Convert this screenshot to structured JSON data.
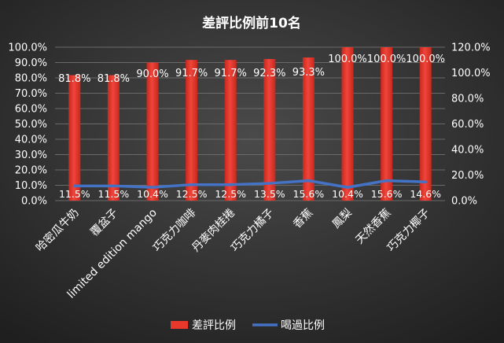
{
  "chart_data": {
    "type": "bar",
    "title": "差評比例前10名",
    "categories": [
      "哈密瓜牛奶",
      "覆盆子",
      "limited edition mango",
      "巧克力咖啡",
      "丹麥肉桂捲",
      "巧克力橘子",
      "香蕉",
      "鳳梨",
      "天然香蕉",
      "巧克力椰子"
    ],
    "series": [
      {
        "name": "差評比例",
        "type": "bar",
        "axis": "left",
        "color": "#e8382c",
        "values": [
          81.8,
          81.8,
          90.0,
          91.7,
          91.7,
          92.3,
          93.3,
          100.0,
          100.0,
          100.0
        ],
        "labels": [
          "81.8%",
          "81.8%",
          "90.0%",
          "91.7%",
          "91.7%",
          "92.3%",
          "93.3%",
          "100.0%",
          "100.0%",
          "100.0%"
        ]
      },
      {
        "name": "喝過比例",
        "type": "line",
        "axis": "right",
        "color": "#4472c4",
        "values": [
          11.5,
          11.5,
          10.4,
          12.5,
          12.5,
          13.5,
          15.6,
          10.4,
          15.6,
          14.6
        ],
        "labels": [
          "11.5%",
          "11.5%",
          "10.4%",
          "12.5%",
          "12.5%",
          "13.5%",
          "15.6%",
          "10.4%",
          "15.6%",
          "14.6%"
        ]
      }
    ],
    "y_left": {
      "ylim": [
        0,
        100
      ],
      "ticks": [
        0,
        10,
        20,
        30,
        40,
        50,
        60,
        70,
        80,
        90,
        100
      ],
      "tick_labels": [
        "0.0%",
        "10.0%",
        "20.0%",
        "30.0%",
        "40.0%",
        "50.0%",
        "60.0%",
        "70.0%",
        "80.0%",
        "90.0%",
        "100.0%"
      ]
    },
    "y_right": {
      "ylim": [
        0,
        120
      ],
      "ticks": [
        0,
        20,
        40,
        60,
        80,
        100,
        120
      ],
      "tick_labels": [
        "0.0%",
        "20.0%",
        "40.0%",
        "60.0%",
        "80.0%",
        "100.0%",
        "120.0%"
      ]
    },
    "grid": true,
    "legend": "bottom"
  },
  "style": {
    "background_top": "#4a4a4a",
    "background_bottom": "#1f1f1f",
    "text_color": "#ffffff",
    "gridline_color": "#6a6a6a"
  }
}
